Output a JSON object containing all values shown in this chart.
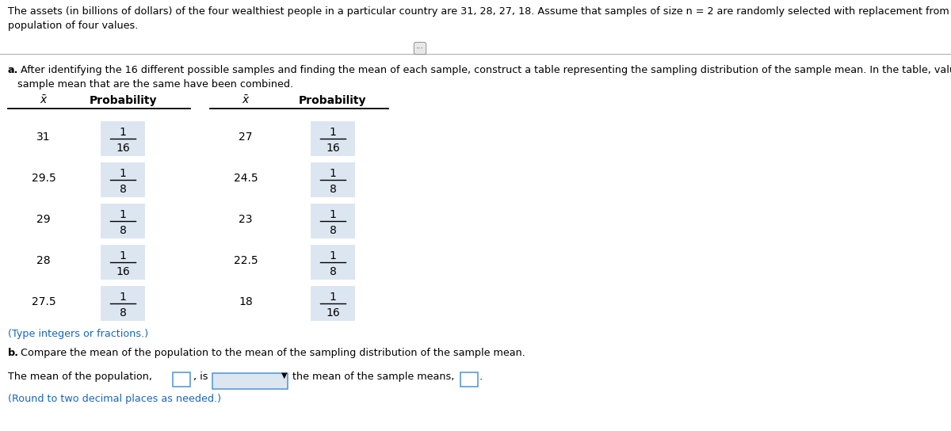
{
  "title_text": "The assets (in billions of dollars) of the four wealthiest people in a particular country are 31, 28, 27, 18. Assume that samples of size n = 2 are randomly selected with replacement from this\npopulation of four values.",
  "part_a_label": "a.",
  "part_a_body": " After identifying the 16 different possible samples and finding the mean of each sample, construct a table representing the sampling distribution of the sample mean. In the table, values of the\nsample mean that are the same have been combined.",
  "col_header_x": "$\\bar{x}$",
  "col_header_prob": "Probability",
  "table_left": {
    "x_vals": [
      "31",
      "29.5",
      "29",
      "28",
      "27.5"
    ],
    "probs_num": [
      "1",
      "1",
      "1",
      "1",
      "1"
    ],
    "probs_den": [
      "16",
      "8",
      "8",
      "16",
      "8"
    ]
  },
  "table_right": {
    "x_vals": [
      "27",
      "24.5",
      "23",
      "22.5",
      "18"
    ],
    "probs_num": [
      "1",
      "1",
      "1",
      "1",
      "1"
    ],
    "probs_den": [
      "16",
      "8",
      "8",
      "8",
      "16"
    ]
  },
  "type_note": "(Type integers or fractions.)",
  "part_b_label": "b.",
  "part_b_body": " Compare the mean of the population to the mean of the sampling distribution of the sample mean.",
  "part_b_line1": "The mean of the population,",
  "part_b_line2": ", is",
  "part_b_line3": "the mean of the sample means,",
  "part_b_line4": ".",
  "round_note": "(Round to two decimal places as needed.)",
  "bg_color": "#ffffff",
  "text_color": "#000000",
  "highlight_color": "#dce6f1",
  "blue_text_color": "#1565c0",
  "separator_color": "#b0b0b0",
  "box_border_color": "#5b9bd5"
}
